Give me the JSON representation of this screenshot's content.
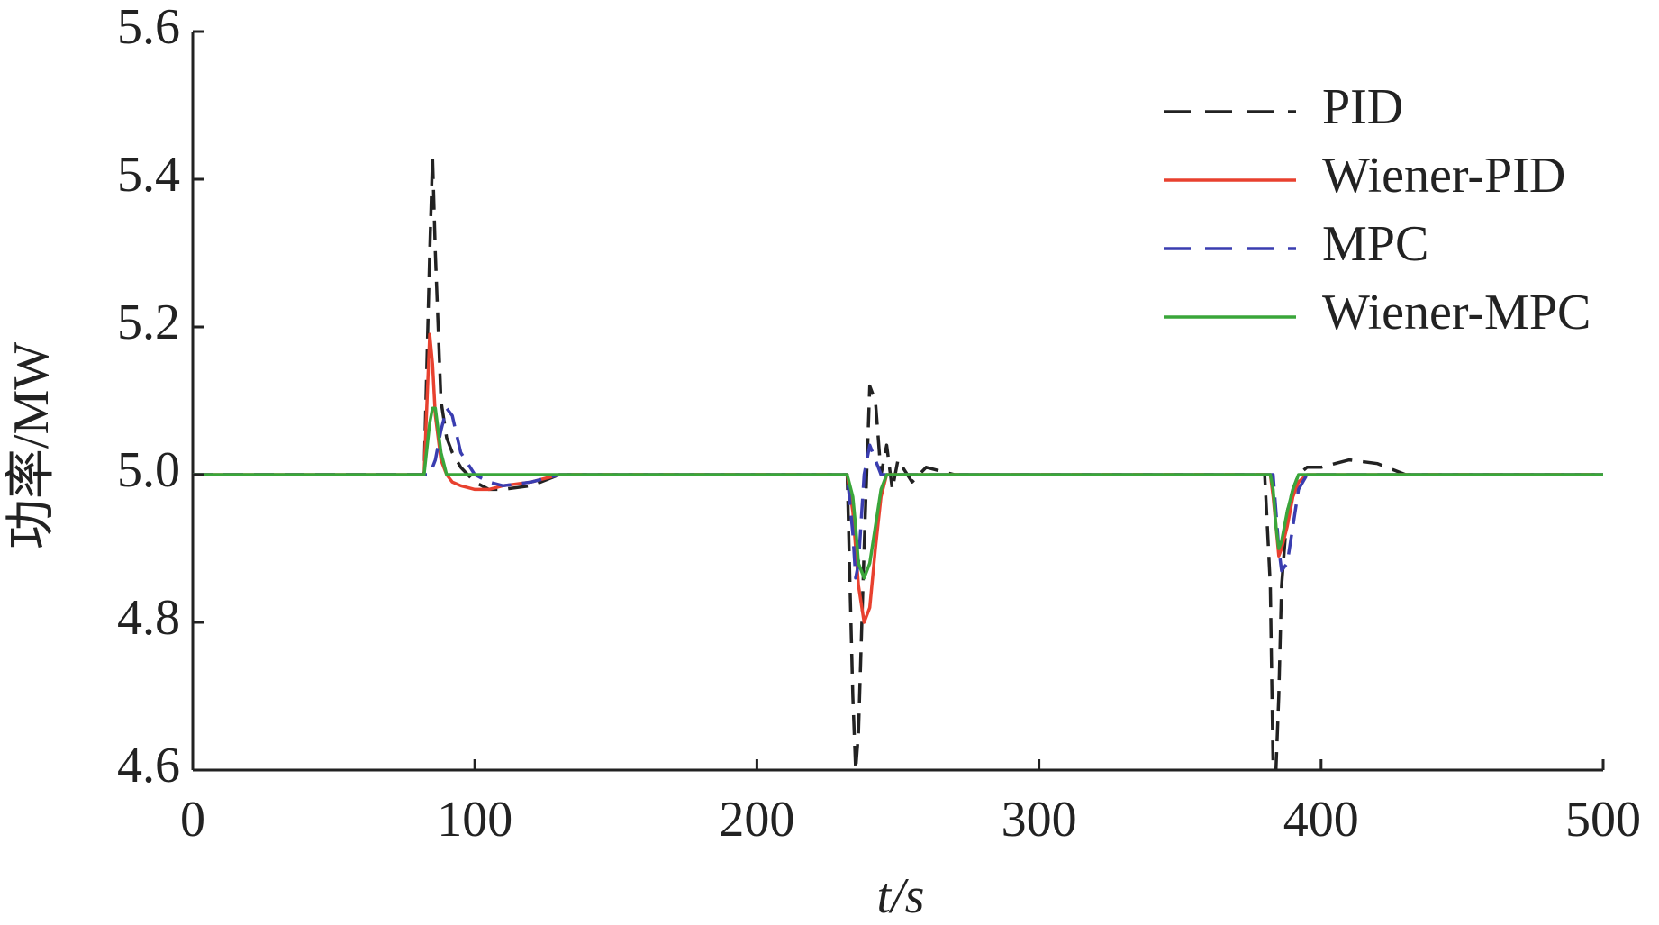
{
  "chart_data": {
    "type": "line",
    "x_label": "t/s",
    "y_label": "功率/MW",
    "x": [
      0,
      80,
      82,
      84,
      85,
      86,
      88,
      90,
      92,
      95,
      100,
      105,
      110,
      120,
      130,
      140,
      230,
      232,
      234,
      235,
      236,
      238,
      240,
      242,
      244,
      246,
      248,
      250,
      255,
      260,
      270,
      380,
      382,
      383,
      384,
      385,
      386,
      388,
      390,
      392,
      395,
      400,
      410,
      420,
      430,
      500
    ],
    "series": [
      {
        "name": "PID",
        "color": "#222222",
        "dashed": true,
        "values": [
          5,
          5,
          5,
          5.3,
          5.43,
          5.3,
          5.1,
          5.05,
          5.03,
          5.01,
          4.99,
          4.98,
          4.98,
          4.985,
          5,
          5,
          5,
          5,
          4.7,
          4.6,
          4.65,
          4.9,
          5.12,
          5.1,
          5,
          5.04,
          4.98,
          5.02,
          4.99,
          5.01,
          5,
          5,
          4.85,
          4.6,
          4.6,
          4.7,
          4.85,
          4.95,
          4.98,
          5,
          5.01,
          5.01,
          5.02,
          5.015,
          5,
          5
        ]
      },
      {
        "name": "Wiener-PID",
        "color": "#e8412f",
        "dashed": false,
        "values": [
          5,
          5,
          5,
          5.19,
          5.15,
          5.08,
          5.02,
          5,
          4.99,
          4.985,
          4.98,
          4.98,
          4.985,
          4.99,
          5,
          5,
          5,
          5,
          4.95,
          4.9,
          4.85,
          4.8,
          4.82,
          4.9,
          4.97,
          5,
          5,
          5,
          5,
          5,
          5,
          5,
          5,
          4.97,
          4.93,
          4.89,
          4.9,
          4.93,
          4.97,
          4.99,
          5,
          5,
          5,
          5,
          5,
          5
        ]
      },
      {
        "name": "MPC",
        "color": "#3a3db0",
        "dashed": true,
        "values": [
          5,
          5,
          5,
          5,
          5.01,
          5.02,
          5.06,
          5.09,
          5.08,
          5.03,
          5,
          4.99,
          4.985,
          4.99,
          5,
          5,
          5,
          5,
          4.92,
          4.86,
          4.88,
          5,
          5.04,
          5.02,
          5,
          5,
          5,
          5,
          5,
          5,
          5,
          5,
          5,
          5,
          4.95,
          4.9,
          4.87,
          4.88,
          4.93,
          4.98,
          5,
          5,
          5,
          5,
          5,
          5
        ]
      },
      {
        "name": "Wiener-MPC",
        "color": "#3aa63a",
        "dashed": false,
        "values": [
          5,
          5,
          5,
          5.07,
          5.09,
          5.09,
          5.03,
          5,
          5,
          5,
          5,
          5,
          5,
          5,
          5,
          5,
          5,
          5,
          4.97,
          4.93,
          4.88,
          4.86,
          4.88,
          4.93,
          4.98,
          5,
          5,
          5,
          5,
          5,
          5,
          5,
          5,
          4.98,
          4.93,
          4.9,
          4.91,
          4.95,
          4.98,
          5,
          5,
          5,
          5,
          5,
          5,
          5
        ]
      }
    ],
    "xlim": [
      0,
      500
    ],
    "xticks": [
      0,
      100,
      200,
      300,
      400,
      500
    ],
    "ylim": [
      4.6,
      5.6
    ],
    "yticks": [
      4.6,
      4.8,
      {
        "value": 5,
        "label": "5.0"
      },
      5.2,
      5.4,
      5.6
    ],
    "grid": false,
    "legend": "upper right"
  }
}
